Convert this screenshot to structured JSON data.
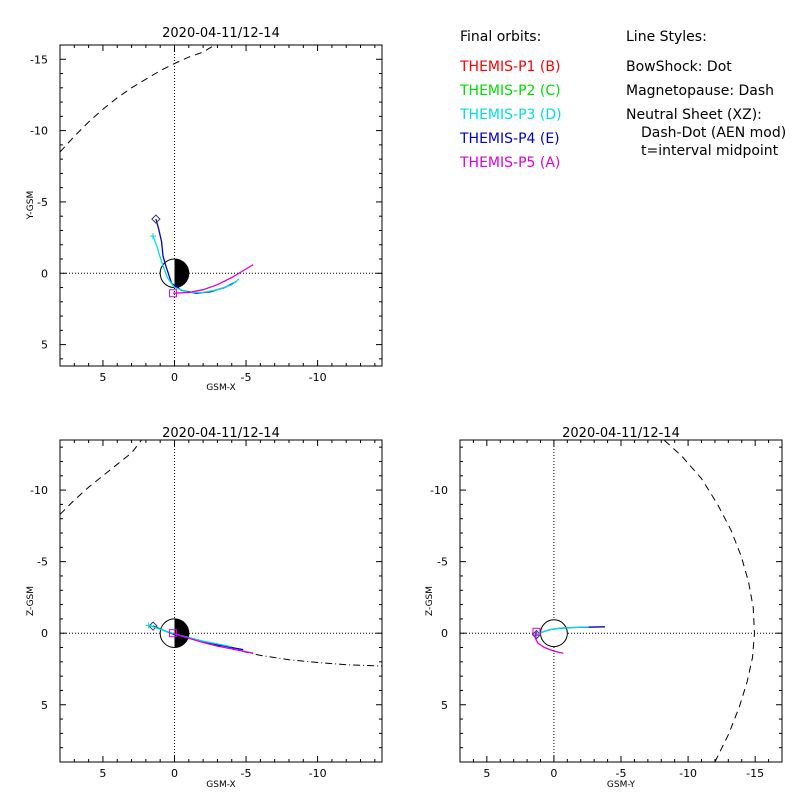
{
  "legend": {
    "title": "Final orbits:",
    "items": [
      {
        "label": "THEMIS-P1 (B)",
        "color": "#ff0000"
      },
      {
        "label": "THEMIS-P2 (C)",
        "color": "#00dd00"
      },
      {
        "label": "THEMIS-P3 (D)",
        "color": "#00dddd"
      },
      {
        "label": "THEMIS-P4 (E)",
        "color": "#0000cc"
      },
      {
        "label": "THEMIS-P5 (A)",
        "color": "#dd00dd"
      }
    ]
  },
  "styles": {
    "title": "Line Styles:",
    "lines": [
      "BowShock: Dot",
      "Magnetopause: Dash",
      "Neutral Sheet (XZ):",
      "Dash-Dot (AEN mod)",
      "t=interval midpoint"
    ]
  },
  "chart_data": [
    {
      "type": "line",
      "title": "2020-04-11/12-14",
      "xlabel": "GSM-X",
      "ylabel": "Y-GSM",
      "xlim": [
        8,
        -14.5
      ],
      "ylim": [
        -16,
        6.5
      ],
      "xticks": [
        5,
        0,
        -5,
        -10
      ],
      "yticks": [
        -15,
        -10,
        -5,
        0,
        5
      ],
      "series": [
        {
          "color": "#0000cc",
          "marker": "diamond",
          "points": [
            [
              1.3,
              -3.8
            ],
            [
              1.1,
              -3.1
            ],
            [
              0.9,
              -2.2
            ],
            [
              0.8,
              -1.2
            ],
            [
              0.6,
              -0.5
            ],
            [
              0.2,
              0.7
            ],
            [
              -0.5,
              1.2
            ],
            [
              -1.5,
              1.4
            ],
            [
              -2.5,
              1.3
            ],
            [
              -3.5,
              1.0
            ],
            [
              -4.3,
              0.6
            ]
          ]
        },
        {
          "color": "#00dddd",
          "marker": "plus",
          "points": [
            [
              1.5,
              -2.6
            ],
            [
              1.2,
              -1.8
            ],
            [
              0.9,
              -0.8
            ],
            [
              0.5,
              0.3
            ],
            [
              0,
              1.0
            ],
            [
              -1,
              1.35
            ],
            [
              -2,
              1.35
            ],
            [
              -3,
              1.15
            ],
            [
              -4,
              0.8
            ],
            [
              -4.5,
              0.4
            ]
          ]
        },
        {
          "color": "#dd00dd",
          "marker": "square",
          "points": [
            [
              0.1,
              1.4
            ],
            [
              -1,
              1.35
            ],
            [
              -2,
              1.15
            ],
            [
              -3,
              0.8
            ],
            [
              -4,
              0.3
            ],
            [
              -5,
              -0.3
            ],
            [
              -5.5,
              -0.6
            ]
          ]
        }
      ],
      "boundaries": [
        {
          "name": "magnetopause",
          "style": "dash",
          "points": [
            [
              8,
              -8.5
            ],
            [
              7,
              -9.6
            ],
            [
              6,
              -10.6
            ],
            [
              5,
              -11.5
            ],
            [
              4,
              -12.3
            ],
            [
              3,
              -13.0
            ],
            [
              2,
              -13.6
            ],
            [
              1,
              -14.2
            ],
            [
              0,
              -14.7
            ],
            [
              -1,
              -15.15
            ],
            [
              -2,
              -15.5
            ],
            [
              -2.8,
              -16
            ]
          ]
        }
      ],
      "earth": true
    },
    {
      "type": "line",
      "title": "2020-04-11/12-14",
      "xlabel": "GSM-X",
      "ylabel": "Z-GSM",
      "xlim": [
        8,
        -14.5
      ],
      "ylim": [
        -13.5,
        9
      ],
      "xticks": [
        5,
        0,
        -5,
        -10
      ],
      "yticks": [
        5,
        0,
        -5,
        -10
      ],
      "series": [
        {
          "color": "#0000cc",
          "marker": "diamond",
          "points": [
            [
              1.5,
              -0.5
            ],
            [
              1,
              -0.3
            ],
            [
              0.5,
              -0.1
            ],
            [
              0,
              0.1
            ],
            [
              -1,
              0.35
            ],
            [
              -2,
              0.6
            ],
            [
              -3,
              0.8
            ],
            [
              -4,
              1.0
            ],
            [
              -4.8,
              1.15
            ]
          ]
        },
        {
          "color": "#00dddd",
          "marker": "plus",
          "points": [
            [
              1.8,
              -0.55
            ],
            [
              1.2,
              -0.35
            ],
            [
              0.6,
              -0.15
            ],
            [
              0,
              0.05
            ],
            [
              -1,
              0.3
            ],
            [
              -2,
              0.55
            ],
            [
              -3,
              0.75
            ],
            [
              -4,
              0.95
            ]
          ]
        },
        {
          "color": "#dd00dd",
          "marker": "square",
          "points": [
            [
              0.1,
              0
            ],
            [
              -1,
              0.35
            ],
            [
              -2,
              0.65
            ],
            [
              -3,
              0.9
            ],
            [
              -4,
              1.1
            ],
            [
              -5,
              1.3
            ],
            [
              -5.5,
              1.4
            ]
          ]
        }
      ],
      "boundaries": [
        {
          "name": "neutral-sheet",
          "style": "dashdot",
          "points": [
            [
              0,
              0
            ],
            [
              -2,
              0.6
            ],
            [
              -4,
              1.1
            ],
            [
              -6,
              1.55
            ],
            [
              -8,
              1.85
            ],
            [
              -10,
              2.05
            ],
            [
              -12,
              2.2
            ],
            [
              -14.5,
              2.3
            ]
          ]
        },
        {
          "name": "magnetopause",
          "style": "dash",
          "points": [
            [
              8,
              -8.3
            ],
            [
              7,
              -9.3
            ],
            [
              6,
              -10.2
            ],
            [
              5,
              -11.0
            ],
            [
              4,
              -11.8
            ],
            [
              3,
              -12.6
            ],
            [
              2.3,
              -13.5
            ]
          ]
        }
      ],
      "earth": true
    },
    {
      "type": "line",
      "title": "2020-04-11/12-14",
      "xlabel": "GSM-Y",
      "ylabel": "Z-GSM",
      "xlim": [
        7,
        -17
      ],
      "ylim": [
        -13.5,
        9
      ],
      "xticks": [
        5,
        0,
        -5,
        -10,
        -15
      ],
      "yticks": [
        5,
        0,
        -5,
        -10
      ],
      "series": [
        {
          "color": "#0000cc",
          "marker": "diamond",
          "points": [
            [
              1.3,
              0.1
            ],
            [
              0.8,
              -0.1
            ],
            [
              0.3,
              -0.25
            ],
            [
              -0.5,
              -0.35
            ],
            [
              -1.5,
              -0.4
            ],
            [
              -2.5,
              -0.42
            ],
            [
              -3.8,
              -0.45
            ]
          ]
        },
        {
          "color": "#00dddd",
          "marker": "plus",
          "points": [
            [
              1.3,
              0.1
            ],
            [
              0.8,
              -0.1
            ],
            [
              0.3,
              -0.25
            ],
            [
              -0.5,
              -0.35
            ],
            [
              -1.5,
              -0.4
            ],
            [
              -2.6,
              -0.43
            ]
          ]
        },
        {
          "color": "#dd00dd",
          "marker": "square",
          "points": [
            [
              1.3,
              -0.1
            ],
            [
              1.4,
              0.3
            ],
            [
              1.2,
              0.7
            ],
            [
              0.7,
              1.0
            ],
            [
              0,
              1.25
            ],
            [
              -0.7,
              1.4
            ]
          ]
        }
      ],
      "boundaries": [
        {
          "name": "magnetopause",
          "style": "dash",
          "points": [
            [
              -12,
              9
            ],
            [
              -13,
              7.1
            ],
            [
              -13.8,
              5.2
            ],
            [
              -14.4,
              3.4
            ],
            [
              -14.8,
              1.7
            ],
            [
              -14.95,
              0
            ],
            [
              -14.85,
              -1.8
            ],
            [
              -14.5,
              -3.6
            ],
            [
              -13.95,
              -5.4
            ],
            [
              -13.2,
              -7.2
            ],
            [
              -12.2,
              -9
            ],
            [
              -11,
              -10.8
            ],
            [
              -9.5,
              -12.4
            ],
            [
              -8.2,
              -13.5
            ]
          ]
        }
      ],
      "earth": true
    }
  ]
}
